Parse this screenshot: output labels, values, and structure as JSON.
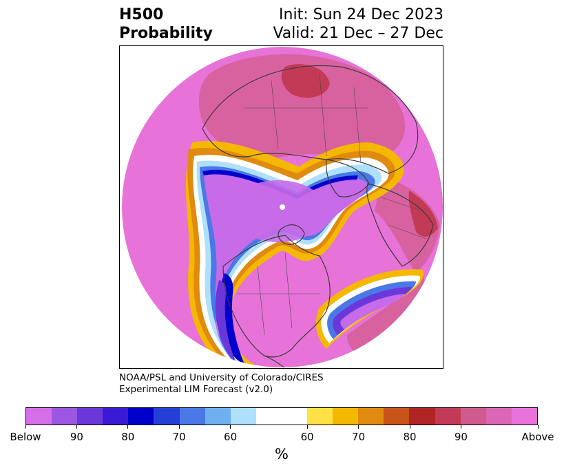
{
  "title": {
    "left_line1": "H500",
    "left_line2": "Probability",
    "right_line1": "Init: Sun 24 Dec 2023",
    "right_line2": "Valid: 21 Dec – 27 Dec"
  },
  "credit": {
    "line1": "NOAA/PSL and University of Colorado/CIRES",
    "line2": "Experimental LIM Forecast (v2.0)"
  },
  "colorbar": {
    "colors": [
      "#d56fe9",
      "#9b57e2",
      "#6a37d9",
      "#3b1ad6",
      "#0000cd",
      "#233fd8",
      "#4a78e6",
      "#6fb0f0",
      "#aee0fb",
      "#ffffff",
      "#ffe145",
      "#f5b800",
      "#e08a10",
      "#c8541c",
      "#b02426",
      "#c23a55",
      "#cf5a8e",
      "#db66b6",
      "#e873da"
    ],
    "tick_labels": [
      "Below",
      "90",
      "80",
      "70",
      "60",
      "60",
      "70",
      "80",
      "90",
      "Above"
    ],
    "unit": "%"
  },
  "map": {
    "description_icon": "polar-stereographic-map",
    "field_colors": {
      "above_high": "#e772d8",
      "above_mid": "#d862a0",
      "above_peak": "#c23a55",
      "below_high": "#c76be9",
      "below_mid": "#6a37d9",
      "below_peak": "#0000cd",
      "neutral": "#ffffff",
      "warm_low": "#f5b800",
      "warm_mid": "#e08a10",
      "cold_low": "#aee0fb",
      "cold_mid": "#4a78e6"
    }
  }
}
